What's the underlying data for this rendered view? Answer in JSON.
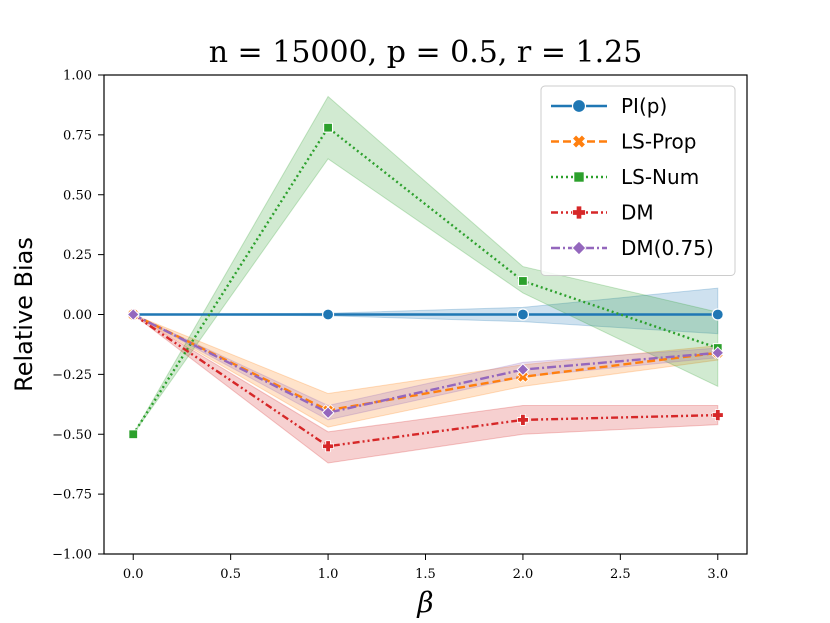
{
  "chart_data": {
    "type": "line",
    "title": "n = 15000, p = 0.5, r = 1.25",
    "xlabel": "β",
    "ylabel": "Relative Bias",
    "xlim": [
      -0.15,
      3.15
    ],
    "ylim": [
      -1.0,
      1.0
    ],
    "xticks": [
      0.0,
      0.5,
      1.0,
      1.5,
      2.0,
      2.5,
      3.0
    ],
    "xtick_labels": [
      "0.0",
      "0.5",
      "1.0",
      "1.5",
      "2.0",
      "2.5",
      "3.0"
    ],
    "yticks": [
      1.0,
      0.75,
      0.5,
      0.25,
      0.0,
      -0.25,
      -0.5,
      -0.75,
      -1.0
    ],
    "ytick_labels": [
      "1.00",
      "0.75",
      "0.50",
      "0.25",
      "0.00",
      "−0.25",
      "−0.50",
      "−0.75",
      "−1.00"
    ],
    "legend_position": "top-right",
    "x": [
      0.0,
      1.0,
      2.0,
      3.0
    ],
    "series": [
      {
        "name": "PI(p)",
        "color": "#1f77b4",
        "dash": "solid",
        "marker": "circle",
        "values": [
          0.0,
          0.0,
          0.0,
          0.0
        ],
        "ci_low": [
          0.0,
          -0.005,
          -0.03,
          -0.08
        ],
        "ci_high": [
          0.0,
          0.005,
          0.03,
          0.11
        ]
      },
      {
        "name": "LS-Prop",
        "color": "#ff7f0e",
        "dash": "dashed",
        "marker": "x",
        "values": [
          0.0,
          -0.4,
          -0.26,
          -0.16
        ],
        "ci_low": [
          0.0,
          -0.47,
          -0.3,
          -0.19
        ],
        "ci_high": [
          0.0,
          -0.33,
          -0.21,
          -0.13
        ]
      },
      {
        "name": "LS-Num",
        "color": "#2ca02c",
        "dash": "dotted",
        "marker": "square",
        "values": [
          -0.5,
          0.78,
          0.14,
          -0.14
        ],
        "ci_low": [
          -0.5,
          0.65,
          0.09,
          -0.3
        ],
        "ci_high": [
          -0.5,
          0.91,
          0.2,
          0.01
        ]
      },
      {
        "name": "DM",
        "color": "#d62728",
        "dash": "dashdotdot",
        "marker": "plus",
        "values": [
          0.0,
          -0.55,
          -0.44,
          -0.42
        ],
        "ci_low": [
          0.0,
          -0.62,
          -0.5,
          -0.46
        ],
        "ci_high": [
          0.0,
          -0.49,
          -0.38,
          -0.38
        ]
      },
      {
        "name": "DM(0.75)",
        "color": "#9467bd",
        "dash": "dashdot",
        "marker": "diamond",
        "values": [
          0.0,
          -0.41,
          -0.23,
          -0.16
        ],
        "ci_low": [
          0.0,
          -0.44,
          -0.26,
          -0.18
        ],
        "ci_high": [
          0.0,
          -0.38,
          -0.2,
          -0.14
        ]
      }
    ]
  }
}
